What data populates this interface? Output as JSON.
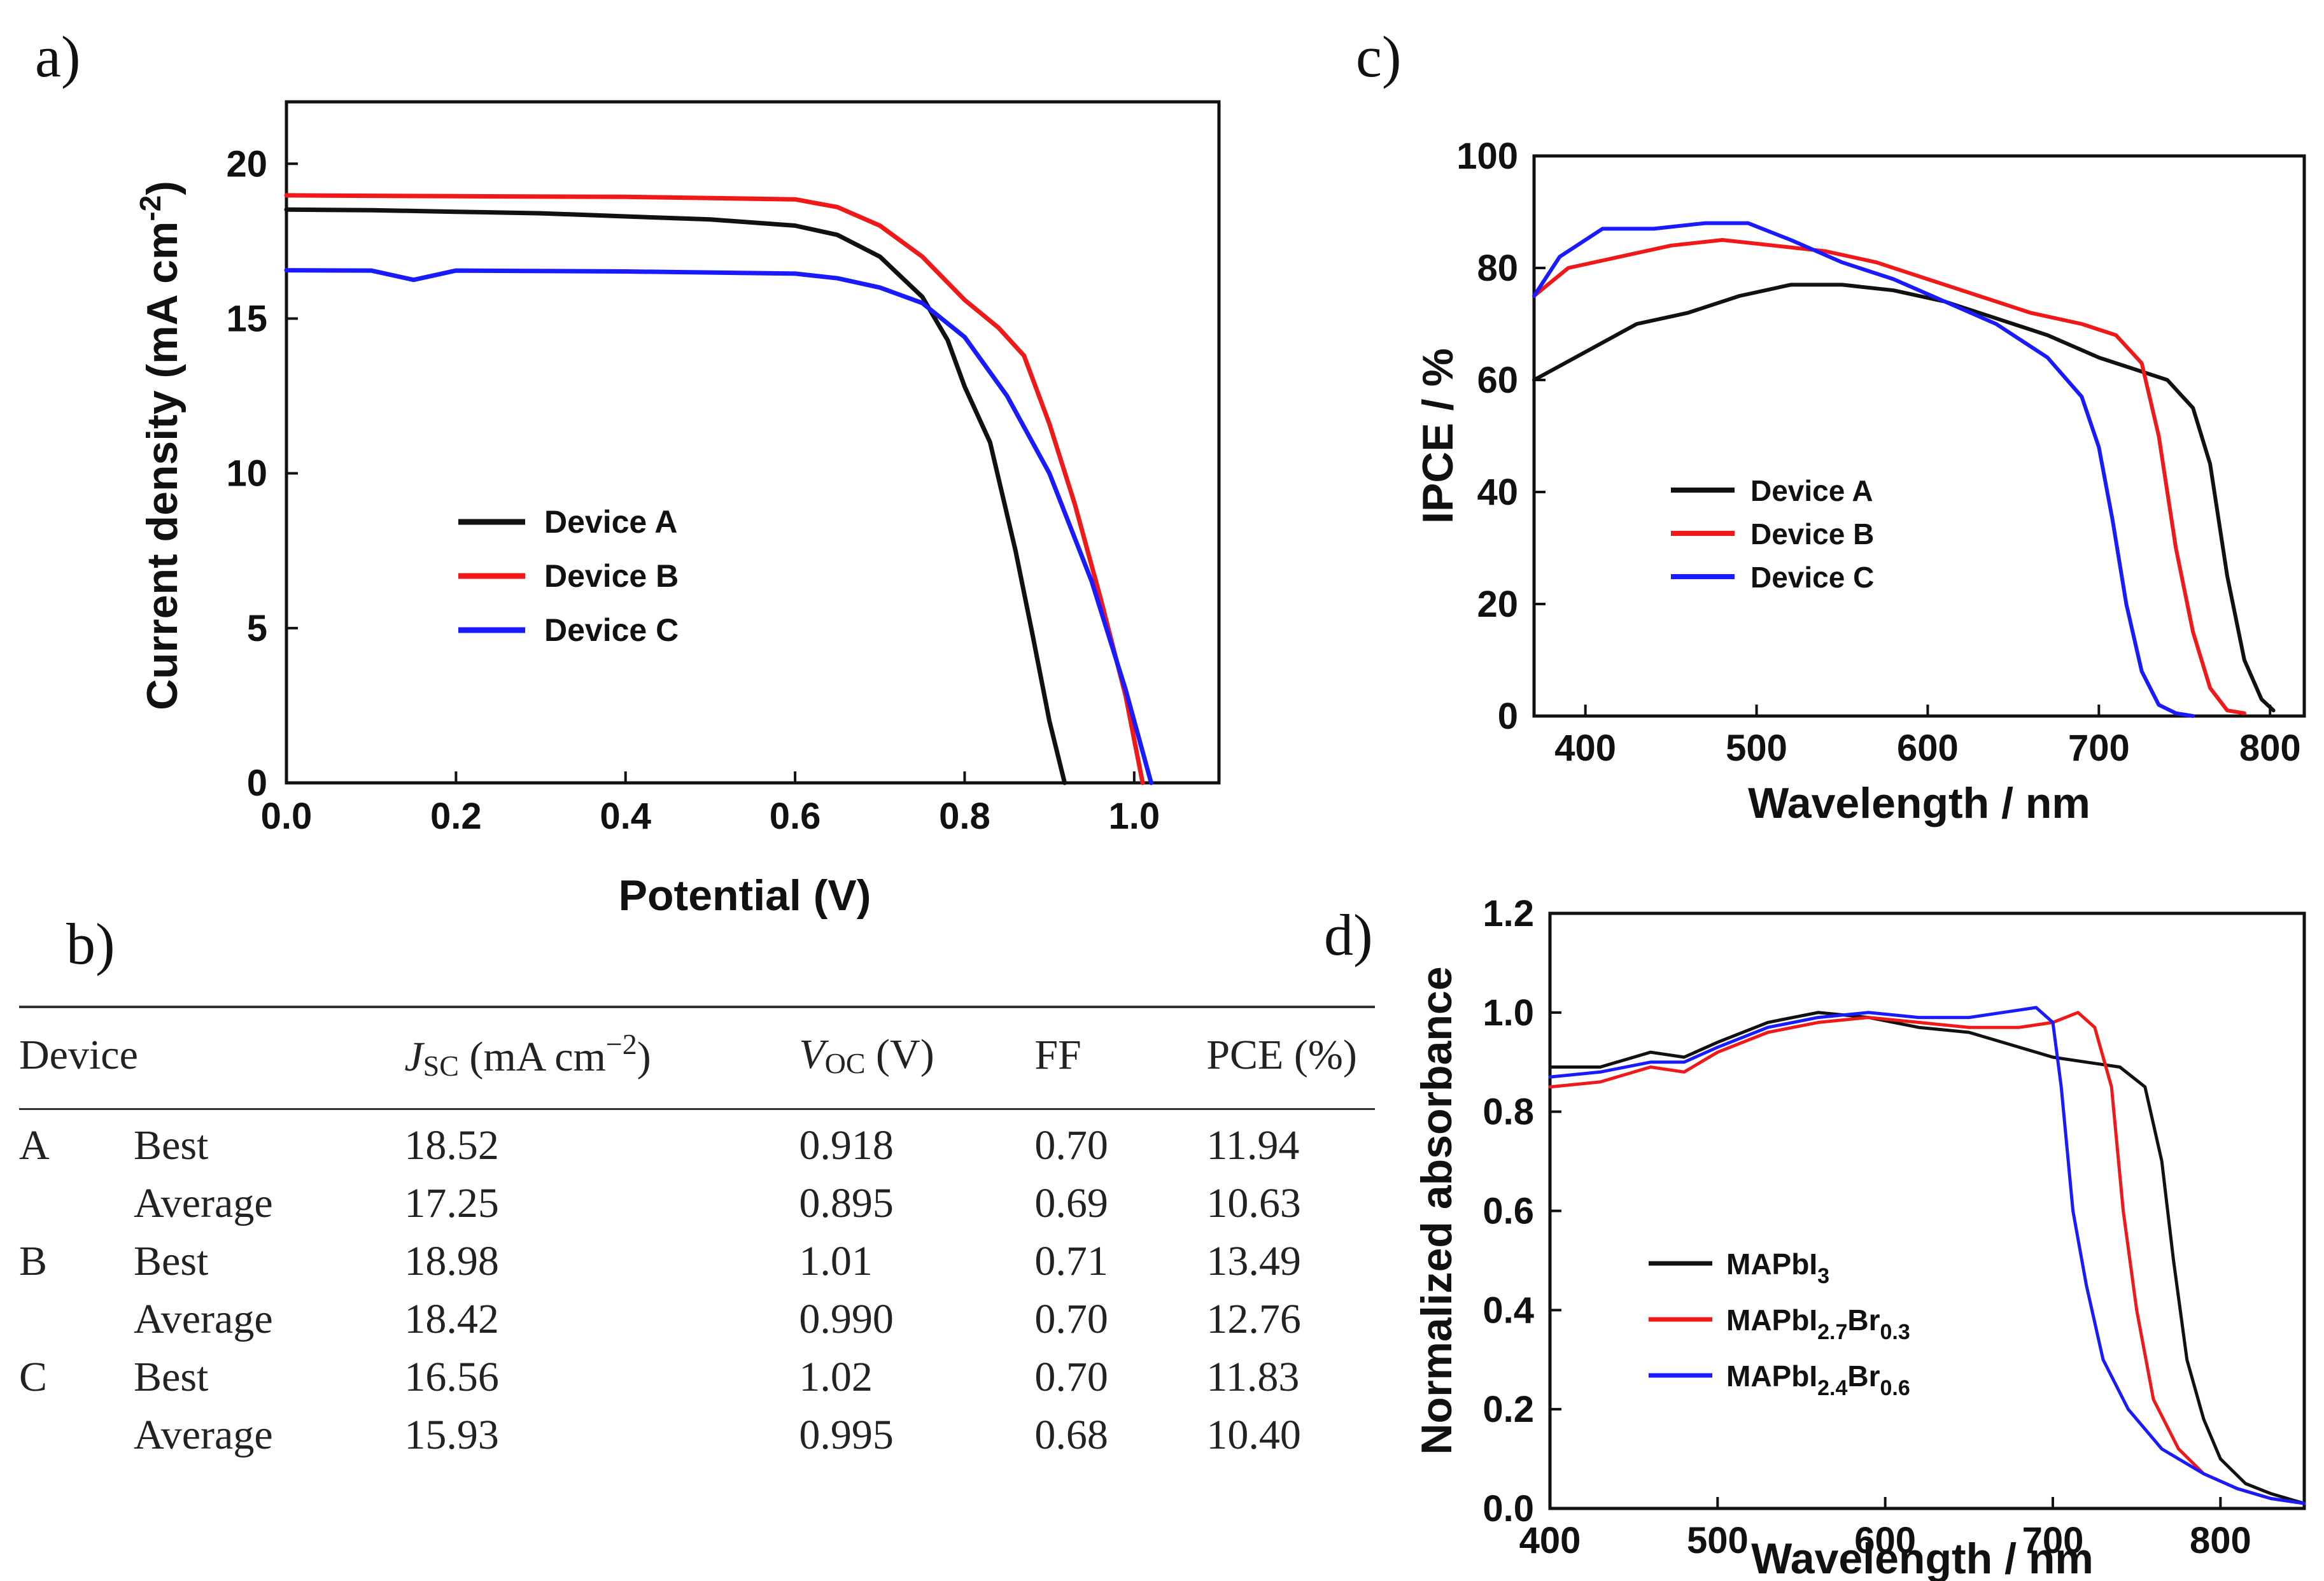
{
  "panel_labels": {
    "a": "a)",
    "b": "b)",
    "c": "c)",
    "d": "d)"
  },
  "colors": {
    "device_a": "#111111",
    "device_b": "#f01818",
    "device_c": "#1a1aff"
  },
  "chart_data": [
    {
      "id": "a",
      "type": "line",
      "title": "",
      "xlabel": "Potential (V)",
      "ylabel": "Current density (mA cm-2)",
      "ylabel_main": "Current density (mA cm",
      "ylabel_sup": "-2",
      "ylabel_end": ")",
      "xlim": [
        0.0,
        1.1
      ],
      "ylim": [
        0,
        22
      ],
      "xticks": [
        "0.0",
        "0.2",
        "0.4",
        "0.6",
        "0.8",
        "1.0"
      ],
      "yticks": [
        "0",
        "5",
        "10",
        "15",
        "20"
      ],
      "xtick_values": [
        0.0,
        0.2,
        0.4,
        0.6,
        0.8,
        1.0
      ],
      "ytick_values": [
        0,
        5,
        10,
        15,
        20
      ],
      "legend": [
        "Device A",
        "Device B",
        "Device C"
      ],
      "series": [
        {
          "name": "Device A",
          "x": [
            0.0,
            0.1,
            0.2,
            0.3,
            0.4,
            0.5,
            0.6,
            0.65,
            0.7,
            0.75,
            0.78,
            0.8,
            0.83,
            0.86,
            0.88,
            0.9,
            0.918
          ],
          "y": [
            18.52,
            18.5,
            18.45,
            18.4,
            18.3,
            18.2,
            18.0,
            17.7,
            17.0,
            15.7,
            14.3,
            12.8,
            11.0,
            7.5,
            4.8,
            2.0,
            0
          ]
        },
        {
          "name": "Device B",
          "x": [
            0.0,
            0.2,
            0.4,
            0.6,
            0.65,
            0.7,
            0.75,
            0.8,
            0.84,
            0.87,
            0.9,
            0.93,
            0.96,
            0.99,
            1.01
          ],
          "y": [
            18.98,
            18.95,
            18.93,
            18.85,
            18.6,
            18.0,
            17.0,
            15.6,
            14.7,
            13.8,
            11.6,
            9.0,
            6.0,
            2.8,
            0
          ]
        },
        {
          "name": "Device C",
          "x": [
            0.0,
            0.1,
            0.15,
            0.2,
            0.4,
            0.6,
            0.65,
            0.7,
            0.75,
            0.8,
            0.85,
            0.9,
            0.95,
            0.99,
            1.02
          ],
          "y": [
            16.56,
            16.55,
            16.25,
            16.55,
            16.52,
            16.45,
            16.3,
            16.0,
            15.5,
            14.4,
            12.5,
            10.0,
            6.5,
            3.0,
            0
          ]
        }
      ]
    },
    {
      "id": "c",
      "type": "line",
      "title": "",
      "xlabel": "Wavelength / nm",
      "ylabel": "IPCE / %",
      "xlim": [
        370,
        820
      ],
      "ylim": [
        0,
        100
      ],
      "xticks": [
        "400",
        "500",
        "600",
        "700",
        "800"
      ],
      "yticks": [
        "0",
        "20",
        "40",
        "60",
        "80",
        "100"
      ],
      "xtick_values": [
        400,
        500,
        600,
        700,
        800
      ],
      "ytick_values": [
        0,
        20,
        40,
        60,
        80,
        100
      ],
      "legend": [
        "Device A",
        "Device B",
        "Device C"
      ],
      "series": [
        {
          "name": "Device A",
          "x": [
            370,
            400,
            430,
            460,
            490,
            520,
            550,
            580,
            610,
            640,
            670,
            700,
            720,
            740,
            755,
            765,
            775,
            785,
            795,
            802
          ],
          "y": [
            60,
            65,
            70,
            72,
            75,
            77,
            77,
            76,
            74,
            71,
            68,
            64,
            62,
            60,
            55,
            45,
            25,
            10,
            3,
            1
          ]
        },
        {
          "name": "Device B",
          "x": [
            370,
            390,
            420,
            450,
            480,
            510,
            540,
            570,
            600,
            630,
            660,
            690,
            710,
            725,
            735,
            745,
            755,
            765,
            775,
            785
          ],
          "y": [
            75,
            80,
            82,
            84,
            85,
            84,
            83,
            81,
            78,
            75,
            72,
            70,
            68,
            63,
            50,
            30,
            15,
            5,
            1,
            0.5
          ]
        },
        {
          "name": "Device C",
          "x": [
            370,
            385,
            410,
            440,
            470,
            495,
            520,
            550,
            580,
            610,
            640,
            670,
            690,
            700,
            708,
            716,
            725,
            735,
            745,
            755
          ],
          "y": [
            75,
            82,
            87,
            87,
            88,
            88,
            85,
            81,
            78,
            74,
            70,
            64,
            57,
            48,
            35,
            20,
            8,
            2,
            0.5,
            0
          ]
        }
      ]
    },
    {
      "id": "d",
      "type": "line",
      "title": "",
      "xlabel": "Wavelength / nm",
      "ylabel": "Normalized absorbance",
      "xlim": [
        400,
        850
      ],
      "ylim": [
        0.0,
        1.2
      ],
      "xticks": [
        "400",
        "500",
        "600",
        "700",
        "800"
      ],
      "yticks": [
        "0.0",
        "0.2",
        "0.4",
        "0.6",
        "0.8",
        "1.0",
        "1.2"
      ],
      "xtick_values": [
        400,
        500,
        600,
        700,
        800
      ],
      "ytick_values": [
        0.0,
        0.2,
        0.4,
        0.6,
        0.8,
        1.0,
        1.2
      ],
      "legend": [
        {
          "main": "MAPbI",
          "sub1": "3",
          "mid": "",
          "sub2": ""
        },
        {
          "main": "MAPbI",
          "sub1": "2.7",
          "mid": "Br",
          "sub2": "0.3"
        },
        {
          "main": "MAPbI",
          "sub1": "2.4",
          "mid": "Br",
          "sub2": "0.6"
        }
      ],
      "series": [
        {
          "name": "MAPbI3",
          "x": [
            400,
            430,
            460,
            480,
            500,
            530,
            560,
            590,
            620,
            650,
            680,
            700,
            720,
            740,
            755,
            765,
            772,
            780,
            790,
            800,
            815,
            830,
            850
          ],
          "y": [
            0.89,
            0.89,
            0.92,
            0.91,
            0.94,
            0.98,
            1.0,
            0.99,
            0.97,
            0.96,
            0.93,
            0.91,
            0.9,
            0.89,
            0.85,
            0.7,
            0.5,
            0.3,
            0.18,
            0.1,
            0.05,
            0.03,
            0.01
          ]
        },
        {
          "name": "MAPbI2.7Br0.3",
          "x": [
            400,
            430,
            460,
            480,
            500,
            530,
            560,
            590,
            620,
            650,
            680,
            700,
            715,
            725,
            735,
            742,
            750,
            760,
            775,
            790,
            810,
            830,
            850
          ],
          "y": [
            0.85,
            0.86,
            0.89,
            0.88,
            0.92,
            0.96,
            0.98,
            0.99,
            0.98,
            0.97,
            0.97,
            0.98,
            1.0,
            0.97,
            0.85,
            0.6,
            0.4,
            0.22,
            0.12,
            0.07,
            0.04,
            0.02,
            0.01
          ]
        },
        {
          "name": "MAPbI2.4Br0.6",
          "x": [
            400,
            430,
            460,
            480,
            500,
            530,
            560,
            590,
            620,
            650,
            670,
            690,
            700,
            705,
            712,
            720,
            730,
            745,
            765,
            790,
            810,
            830,
            850
          ],
          "y": [
            0.87,
            0.88,
            0.9,
            0.9,
            0.93,
            0.97,
            0.99,
            1.0,
            0.99,
            0.99,
            1.0,
            1.01,
            0.98,
            0.85,
            0.6,
            0.45,
            0.3,
            0.2,
            0.12,
            0.07,
            0.04,
            0.02,
            0.01
          ]
        }
      ]
    }
  ],
  "table": {
    "headers": {
      "device": "Device",
      "jsc_symbol": "J",
      "jsc_sub": "SC",
      "jsc_unit_pre": " (mA cm",
      "jsc_unit_sup": "−2",
      "jsc_unit_post": ")",
      "voc_symbol": "V",
      "voc_sub": "OC",
      "voc_unit": " (V)",
      "ff": "FF",
      "pce": "PCE (%)"
    },
    "rows": [
      {
        "device": "A",
        "type": "Best",
        "jsc": "18.52",
        "voc": "0.918",
        "ff": "0.70",
        "pce": "11.94"
      },
      {
        "device": "",
        "type": "Average",
        "jsc": "17.25",
        "voc": "0.895",
        "ff": "0.69",
        "pce": "10.63"
      },
      {
        "device": "B",
        "type": "Best",
        "jsc": "18.98",
        "voc": "1.01",
        "ff": "0.71",
        "pce": "13.49"
      },
      {
        "device": "",
        "type": "Average",
        "jsc": "18.42",
        "voc": "0.990",
        "ff": "0.70",
        "pce": "12.76"
      },
      {
        "device": "C",
        "type": "Best",
        "jsc": "16.56",
        "voc": "1.02",
        "ff": "0.70",
        "pce": "11.83"
      },
      {
        "device": "",
        "type": "Average",
        "jsc": "15.93",
        "voc": "0.995",
        "ff": "0.68",
        "pce": "10.40"
      }
    ]
  }
}
